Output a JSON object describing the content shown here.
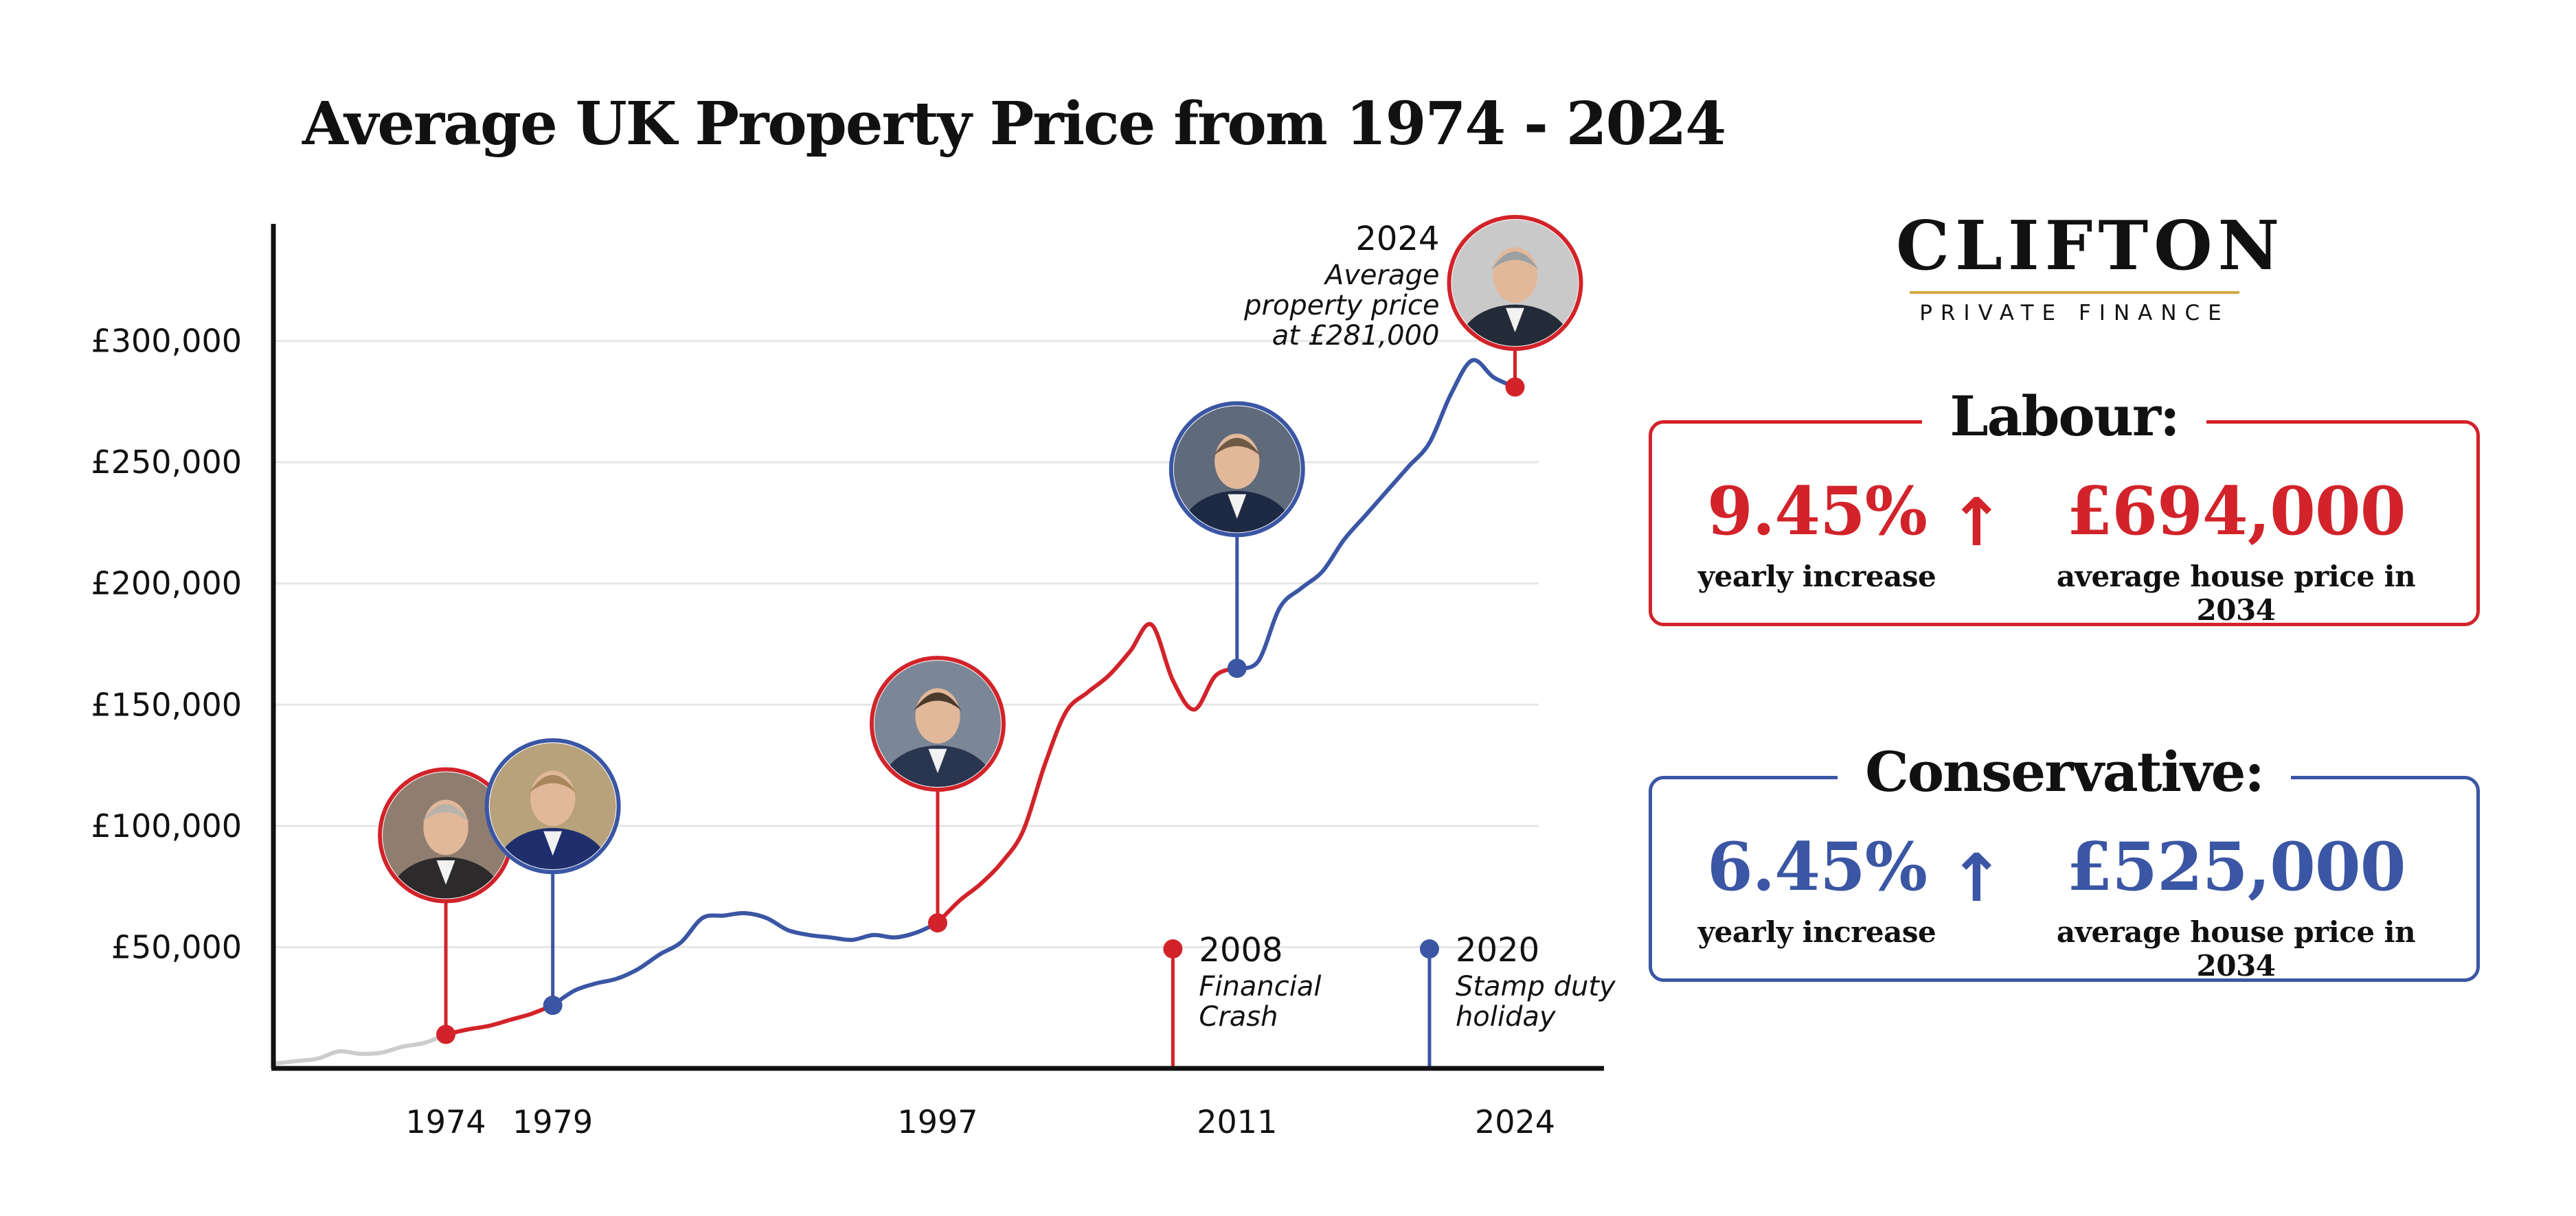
{
  "header": {
    "title": "Average UK Property Price from 1974 - 2024"
  },
  "brand": {
    "name": "CLIFTON",
    "tagline": "PRIVATE FINANCE",
    "rule_color": "#d4a84a"
  },
  "colors": {
    "labour": "#d2232a",
    "conservative": "#3a56a4",
    "pre_period": "#cccccc",
    "axis": "#111111",
    "grid": "#e6e6e6"
  },
  "projections": [
    {
      "party": "Labour:",
      "rate": "9.45%",
      "rate_label": "yearly increase",
      "arrow": "↑",
      "price": "£694,000",
      "price_label": "average house price in 2034"
    },
    {
      "party": "Conservative:",
      "rate": "6.45%",
      "rate_label": "yearly increase",
      "arrow": "↑",
      "price": "£525,000",
      "price_label": "average house price in 2034"
    }
  ],
  "chart_data": {
    "type": "line",
    "title": "Average UK Property Price from 1974 - 2024",
    "xlabel": "",
    "ylabel": "",
    "xlim": [
      1966,
      2028
    ],
    "ylim": [
      0,
      350000
    ],
    "yticks": [
      50000,
      100000,
      150000,
      200000,
      250000,
      300000
    ],
    "ytick_labels": [
      "£50,000",
      "£100,000",
      "£150,000",
      "£200,000",
      "£250,000",
      "£300,000"
    ],
    "xtick_labels": [
      "1974",
      "1979",
      "1997",
      "2011",
      "2024"
    ],
    "grid": true,
    "series": [
      {
        "color": "#cccccc",
        "points": [
          [
            1966,
            2000
          ],
          [
            1967,
            3000
          ],
          [
            1968,
            4000
          ],
          [
            1969,
            7000
          ],
          [
            1970,
            6000
          ],
          [
            1971,
            6500
          ],
          [
            1972,
            9000
          ],
          [
            1973,
            10500
          ],
          [
            1974,
            14000
          ]
        ]
      },
      {
        "color": "#d2232a",
        "points": [
          [
            1974,
            14000
          ],
          [
            1975,
            16000
          ],
          [
            1976,
            17500
          ],
          [
            1977,
            20000
          ],
          [
            1978,
            22500
          ],
          [
            1979,
            26000
          ]
        ]
      },
      {
        "color": "#3a56a4",
        "points": [
          [
            1979,
            26000
          ],
          [
            1980,
            32000
          ],
          [
            1981,
            35000
          ],
          [
            1982,
            37000
          ],
          [
            1983,
            41000
          ],
          [
            1984,
            47000
          ],
          [
            1985,
            52000
          ],
          [
            1986,
            62000
          ],
          [
            1987,
            63000
          ],
          [
            1988,
            64000
          ],
          [
            1989,
            62000
          ],
          [
            1990,
            57000
          ],
          [
            1991,
            55000
          ],
          [
            1992,
            54000
          ],
          [
            1993,
            53000
          ],
          [
            1994,
            55000
          ],
          [
            1995,
            54000
          ],
          [
            1996,
            56000
          ],
          [
            1997,
            60000
          ]
        ]
      },
      {
        "color": "#d2232a",
        "points": [
          [
            1997,
            60000
          ],
          [
            1998,
            69000
          ],
          [
            1999,
            76000
          ],
          [
            2000,
            85000
          ],
          [
            2001,
            98000
          ],
          [
            2002,
            125000
          ],
          [
            2003,
            147000
          ],
          [
            2004,
            155000
          ],
          [
            2005,
            162000
          ],
          [
            2006,
            172000
          ],
          [
            2007,
            183000
          ],
          [
            2008,
            160000
          ],
          [
            2009,
            148000
          ],
          [
            2010,
            162000
          ],
          [
            2011,
            165000
          ]
        ]
      },
      {
        "color": "#3a56a4",
        "points": [
          [
            2011,
            165000
          ],
          [
            2012,
            168000
          ],
          [
            2013,
            190000
          ],
          [
            2014,
            198000
          ],
          [
            2015,
            205000
          ],
          [
            2016,
            218000
          ],
          [
            2017,
            228000
          ],
          [
            2018,
            238000
          ],
          [
            2019,
            248000
          ],
          [
            2020,
            258000
          ],
          [
            2021,
            278000
          ],
          [
            2022,
            292000
          ],
          [
            2023,
            285000
          ],
          [
            2024,
            281000
          ]
        ]
      }
    ],
    "markers": [
      {
        "year": 1974,
        "value": 14000,
        "color": "#d2232a",
        "label": "1974",
        "portrait": "harold-wilson"
      },
      {
        "year": 1979,
        "value": 26000,
        "color": "#3a56a4",
        "label": "1979",
        "portrait": "margaret-thatcher"
      },
      {
        "year": 1997,
        "value": 60000,
        "color": "#d2232a",
        "label": "1997",
        "portrait": "tony-blair"
      },
      {
        "year": 2011,
        "value": 165000,
        "color": "#3a56a4",
        "label": "2011",
        "portrait": "david-cameron"
      },
      {
        "year": 2024,
        "value": 281000,
        "color": "#d2232a",
        "label": "2024",
        "portrait": "keir-starmer"
      }
    ],
    "annotations": [
      {
        "year_text": "2008",
        "lines": [
          "Financial",
          "Crash"
        ],
        "color": "#d2232a"
      },
      {
        "year_text": "2020",
        "lines": [
          "Stamp duty",
          "holiday"
        ],
        "color": "#3a56a4"
      },
      {
        "year_text": "2024",
        "lines": [
          "Average",
          "property price",
          "at £281,000"
        ],
        "color": "#111111"
      }
    ]
  }
}
